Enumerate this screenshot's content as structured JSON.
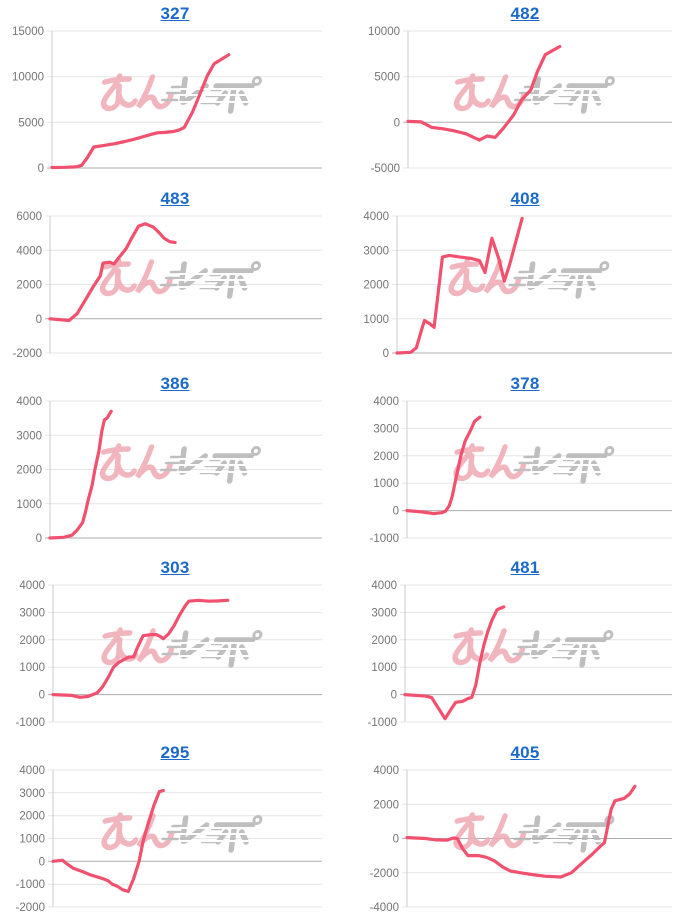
{
  "style": {
    "background": "#FFFFFF",
    "line_color": "#F1506E",
    "grid_color": "#E6E6E6",
    "zero_line_color": "#ADADAD",
    "axis_color": "#CCCCCC",
    "tick_label_color": "#757575",
    "title_link_color": "#1B6AC9"
  },
  "watermark": {
    "text": "みんレポ",
    "pink_color": "#EFA9B3",
    "gray_color": "#B5B5B5"
  },
  "chart_data": [
    {
      "type": "line",
      "title": "327",
      "legend": "none",
      "grid": true,
      "xlim": [
        0,
        1
      ],
      "ylim": [
        0,
        15000
      ],
      "y_ticks": [
        15000,
        10000,
        5000,
        0
      ],
      "points": [
        [
          0,
          50
        ],
        [
          0.05,
          80
        ],
        [
          0.09,
          120
        ],
        [
          0.11,
          300
        ],
        [
          0.13,
          1100
        ],
        [
          0.155,
          2300
        ],
        [
          0.19,
          2450
        ],
        [
          0.23,
          2650
        ],
        [
          0.27,
          2900
        ],
        [
          0.31,
          3200
        ],
        [
          0.34,
          3450
        ],
        [
          0.37,
          3700
        ],
        [
          0.39,
          3850
        ],
        [
          0.42,
          3900
        ],
        [
          0.45,
          4000
        ],
        [
          0.47,
          4150
        ],
        [
          0.49,
          4450
        ],
        [
          0.52,
          6100
        ],
        [
          0.545,
          7900
        ],
        [
          0.575,
          10100
        ],
        [
          0.6,
          11400
        ],
        [
          0.655,
          12400
        ]
      ]
    },
    {
      "type": "line",
      "title": "482",
      "legend": "none",
      "grid": true,
      "xlim": [
        0,
        1
      ],
      "ylim": [
        -5000,
        10000
      ],
      "y_ticks": [
        10000,
        5000,
        0,
        -5000
      ],
      "points": [
        [
          0,
          100
        ],
        [
          0.05,
          50
        ],
        [
          0.09,
          -550
        ],
        [
          0.13,
          -700
        ],
        [
          0.17,
          -900
        ],
        [
          0.22,
          -1250
        ],
        [
          0.27,
          -1950
        ],
        [
          0.3,
          -1500
        ],
        [
          0.33,
          -1650
        ],
        [
          0.36,
          -700
        ],
        [
          0.4,
          800
        ],
        [
          0.43,
          2450
        ],
        [
          0.465,
          3550
        ],
        [
          0.49,
          5550
        ],
        [
          0.52,
          7400
        ],
        [
          0.575,
          8300
        ]
      ]
    },
    {
      "type": "line",
      "title": "483",
      "legend": "none",
      "grid": true,
      "xlim": [
        0,
        1
      ],
      "ylim": [
        -2000,
        6000
      ],
      "y_ticks": [
        6000,
        4000,
        2000,
        0,
        -2000
      ],
      "points": [
        [
          0,
          0
        ],
        [
          0.07,
          -100
        ],
        [
          0.1,
          300
        ],
        [
          0.13,
          1100
        ],
        [
          0.16,
          1900
        ],
        [
          0.185,
          2500
        ],
        [
          0.195,
          3250
        ],
        [
          0.22,
          3300
        ],
        [
          0.235,
          3200
        ],
        [
          0.25,
          3500
        ],
        [
          0.28,
          4100
        ],
        [
          0.3,
          4700
        ],
        [
          0.325,
          5400
        ],
        [
          0.35,
          5550
        ],
        [
          0.38,
          5350
        ],
        [
          0.4,
          5050
        ],
        [
          0.42,
          4700
        ],
        [
          0.44,
          4500
        ],
        [
          0.46,
          4450
        ]
      ]
    },
    {
      "type": "line",
      "title": "408",
      "legend": "none",
      "grid": true,
      "xlim": [
        0,
        1
      ],
      "ylim": [
        0,
        4000
      ],
      "y_ticks": [
        4000,
        3000,
        2000,
        1000,
        0
      ],
      "points": [
        [
          0,
          0
        ],
        [
          0.05,
          20
        ],
        [
          0.07,
          150
        ],
        [
          0.09,
          700
        ],
        [
          0.1,
          950
        ],
        [
          0.12,
          850
        ],
        [
          0.135,
          750
        ],
        [
          0.165,
          2800
        ],
        [
          0.19,
          2850
        ],
        [
          0.23,
          2800
        ],
        [
          0.27,
          2760
        ],
        [
          0.3,
          2700
        ],
        [
          0.32,
          2350
        ],
        [
          0.345,
          3350
        ],
        [
          0.37,
          2750
        ],
        [
          0.39,
          2100
        ],
        [
          0.41,
          2600
        ],
        [
          0.43,
          3200
        ],
        [
          0.455,
          3930
        ]
      ]
    },
    {
      "type": "line",
      "title": "386",
      "legend": "none",
      "grid": true,
      "xlim": [
        0,
        1
      ],
      "ylim": [
        0,
        4000
      ],
      "y_ticks": [
        4000,
        3000,
        2000,
        1000,
        0
      ],
      "points": [
        [
          0,
          0
        ],
        [
          0.05,
          20
        ],
        [
          0.08,
          80
        ],
        [
          0.1,
          230
        ],
        [
          0.12,
          450
        ],
        [
          0.13,
          750
        ],
        [
          0.14,
          1100
        ],
        [
          0.155,
          1550
        ],
        [
          0.165,
          2000
        ],
        [
          0.18,
          2550
        ],
        [
          0.19,
          3100
        ],
        [
          0.2,
          3450
        ],
        [
          0.21,
          3500
        ],
        [
          0.225,
          3700
        ]
      ]
    },
    {
      "type": "line",
      "title": "378",
      "legend": "none",
      "grid": true,
      "xlim": [
        0,
        1
      ],
      "ylim": [
        -1000,
        4000
      ],
      "y_ticks": [
        4000,
        3000,
        2000,
        1000,
        0,
        -1000
      ],
      "points": [
        [
          0,
          0
        ],
        [
          0.06,
          -50
        ],
        [
          0.1,
          -110
        ],
        [
          0.13,
          -75
        ],
        [
          0.145,
          -30
        ],
        [
          0.16,
          190
        ],
        [
          0.17,
          500
        ],
        [
          0.18,
          960
        ],
        [
          0.19,
          1400
        ],
        [
          0.205,
          2070
        ],
        [
          0.22,
          2550
        ],
        [
          0.24,
          2930
        ],
        [
          0.255,
          3260
        ],
        [
          0.275,
          3410
        ]
      ]
    },
    {
      "type": "line",
      "title": "303",
      "legend": "none",
      "grid": true,
      "xlim": [
        0,
        1
      ],
      "ylim": [
        -1000,
        4000
      ],
      "y_ticks": [
        4000,
        3000,
        2000,
        1000,
        0,
        -1000
      ],
      "points": [
        [
          0,
          0
        ],
        [
          0.07,
          -30
        ],
        [
          0.1,
          -100
        ],
        [
          0.13,
          -70
        ],
        [
          0.165,
          70
        ],
        [
          0.185,
          300
        ],
        [
          0.205,
          620
        ],
        [
          0.225,
          1000
        ],
        [
          0.245,
          1180
        ],
        [
          0.26,
          1260
        ],
        [
          0.28,
          1370
        ],
        [
          0.3,
          1380
        ],
        [
          0.315,
          1740
        ],
        [
          0.335,
          2150
        ],
        [
          0.365,
          2190
        ],
        [
          0.385,
          2190
        ],
        [
          0.4,
          2110
        ],
        [
          0.41,
          2040
        ],
        [
          0.43,
          2220
        ],
        [
          0.45,
          2520
        ],
        [
          0.47,
          2890
        ],
        [
          0.49,
          3220
        ],
        [
          0.505,
          3410
        ],
        [
          0.54,
          3440
        ],
        [
          0.58,
          3410
        ],
        [
          0.615,
          3420
        ],
        [
          0.65,
          3440
        ]
      ]
    },
    {
      "type": "line",
      "title": "481",
      "legend": "none",
      "grid": true,
      "xlim": [
        0,
        1
      ],
      "ylim": [
        -1000,
        4000
      ],
      "y_ticks": [
        4000,
        3000,
        2000,
        1000,
        0,
        -1000
      ],
      "points": [
        [
          0,
          0
        ],
        [
          0.08,
          -60
        ],
        [
          0.1,
          -110
        ],
        [
          0.15,
          -880
        ],
        [
          0.175,
          -500
        ],
        [
          0.19,
          -280
        ],
        [
          0.215,
          -250
        ],
        [
          0.235,
          -150
        ],
        [
          0.25,
          -100
        ],
        [
          0.265,
          350
        ],
        [
          0.28,
          1150
        ],
        [
          0.295,
          1800
        ],
        [
          0.31,
          2300
        ],
        [
          0.325,
          2700
        ],
        [
          0.345,
          3100
        ],
        [
          0.37,
          3200
        ]
      ]
    },
    {
      "type": "line",
      "title": "295",
      "legend": "none",
      "grid": true,
      "xlim": [
        0,
        1
      ],
      "ylim": [
        -2000,
        4000
      ],
      "y_ticks": [
        4000,
        3000,
        2000,
        1000,
        0,
        -1000,
        -2000
      ],
      "points": [
        [
          0,
          0
        ],
        [
          0.035,
          50
        ],
        [
          0.05,
          -100
        ],
        [
          0.075,
          -300
        ],
        [
          0.11,
          -450
        ],
        [
          0.14,
          -600
        ],
        [
          0.165,
          -680
        ],
        [
          0.19,
          -780
        ],
        [
          0.205,
          -850
        ],
        [
          0.22,
          -1000
        ],
        [
          0.24,
          -1100
        ],
        [
          0.26,
          -1250
        ],
        [
          0.28,
          -1320
        ],
        [
          0.3,
          -750
        ],
        [
          0.32,
          0
        ],
        [
          0.335,
          880
        ],
        [
          0.355,
          1700
        ],
        [
          0.375,
          2450
        ],
        [
          0.395,
          3050
        ],
        [
          0.41,
          3100
        ]
      ]
    },
    {
      "type": "line",
      "title": "405",
      "legend": "none",
      "grid": true,
      "xlim": [
        0,
        1
      ],
      "ylim": [
        -4000,
        4000
      ],
      "y_ticks": [
        4000,
        2000,
        0,
        -2000,
        -4000
      ],
      "points": [
        [
          0,
          50
        ],
        [
          0.07,
          0
        ],
        [
          0.11,
          -80
        ],
        [
          0.15,
          -100
        ],
        [
          0.175,
          30
        ],
        [
          0.19,
          0
        ],
        [
          0.21,
          -600
        ],
        [
          0.23,
          -1000
        ],
        [
          0.27,
          -1000
        ],
        [
          0.3,
          -1100
        ],
        [
          0.33,
          -1300
        ],
        [
          0.36,
          -1650
        ],
        [
          0.39,
          -1900
        ],
        [
          0.43,
          -2000
        ],
        [
          0.47,
          -2100
        ],
        [
          0.52,
          -2200
        ],
        [
          0.58,
          -2250
        ],
        [
          0.62,
          -2000
        ],
        [
          0.66,
          -1450
        ],
        [
          0.7,
          -900
        ],
        [
          0.73,
          -450
        ],
        [
          0.745,
          -250
        ],
        [
          0.77,
          1700
        ],
        [
          0.785,
          2200
        ],
        [
          0.82,
          2350
        ],
        [
          0.84,
          2600
        ],
        [
          0.86,
          3050
        ]
      ]
    }
  ]
}
